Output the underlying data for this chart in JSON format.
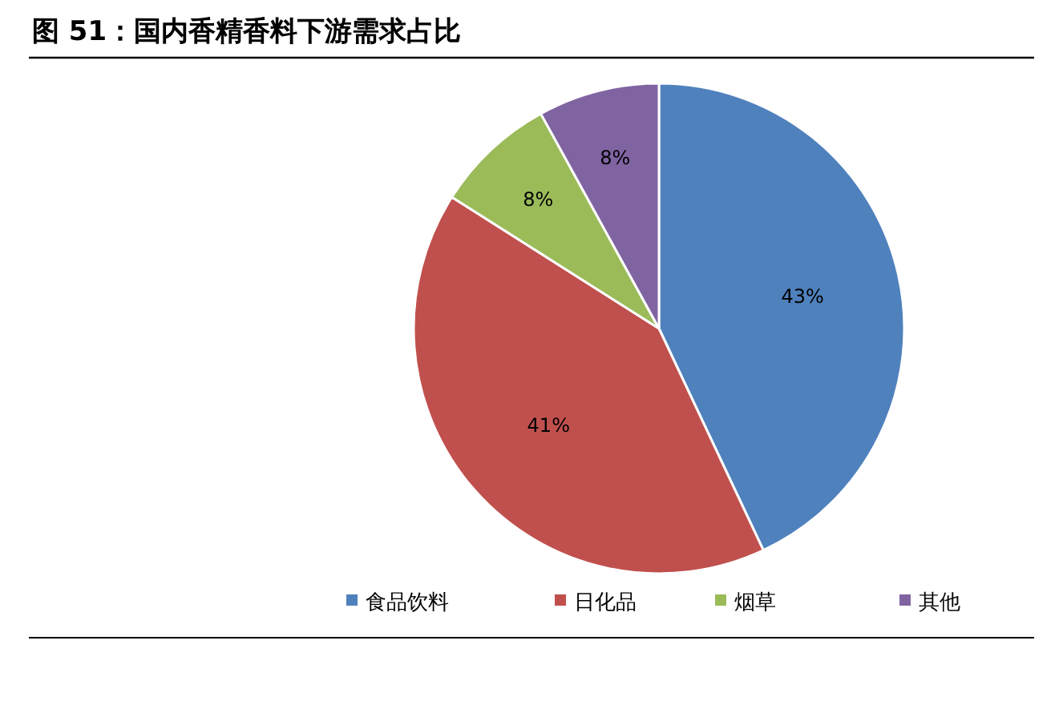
{
  "chart_data": {
    "type": "pie",
    "title": "图 51：国内香精香料下游需求占比",
    "categories": [
      "食品饮料",
      "日化品",
      "烟草",
      "其他"
    ],
    "values": [
      43,
      41,
      8,
      8
    ],
    "colors": [
      "#4f81bd",
      "#c0504d",
      "#9bbb59",
      "#8064a2"
    ],
    "value_labels": [
      "43%",
      "41%",
      "8%",
      "8%"
    ],
    "legend": "bottom"
  }
}
